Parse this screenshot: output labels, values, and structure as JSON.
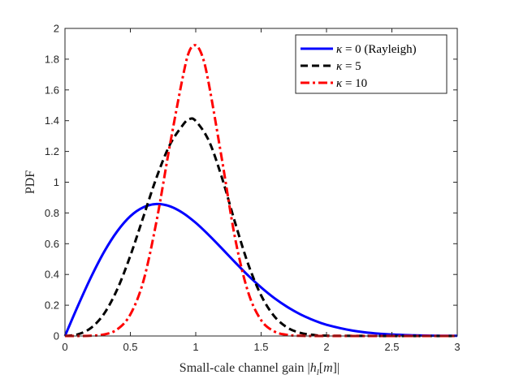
{
  "chart_data": {
    "type": "line",
    "title": "",
    "xlabel": "Small-cale channel gain |h_l[m]|",
    "xlabel_parts": {
      "prefix": "Small-cale channel gain |",
      "h": "h",
      "sub": "l",
      "bracket": "[",
      "m": "m",
      "suffix": "]|"
    },
    "ylabel": "PDF",
    "xlim": [
      0,
      3
    ],
    "ylim": [
      0,
      2
    ],
    "x_ticks": [
      0,
      0.5,
      1,
      1.5,
      2,
      2.5,
      3
    ],
    "x_tick_labels": [
      "0",
      "0.5",
      "1",
      "1.5",
      "2",
      "2.5",
      "3"
    ],
    "y_ticks": [
      0,
      0.2,
      0.4,
      0.6,
      0.8,
      1,
      1.2,
      1.4,
      1.6,
      1.8,
      2
    ],
    "y_tick_labels": [
      "0",
      "0.2",
      "0.4",
      "0.6",
      "0.8",
      "1",
      "1.2",
      "1.4",
      "1.6",
      "1.8",
      "2"
    ],
    "grid": false,
    "legend_position": "top-right",
    "series": [
      {
        "name": "κ = 0 (Rayleigh)",
        "kappa_symbol": "κ",
        "label_rest": " = 0 (Rayleigh)",
        "kappa": 0,
        "color": "#0000ff",
        "dash": "solid",
        "x": [
          0,
          0.1,
          0.2,
          0.3,
          0.4,
          0.5,
          0.6,
          0.7,
          0.8,
          0.9,
          1.0,
          1.1,
          1.2,
          1.3,
          1.4,
          1.5,
          1.6,
          1.7,
          1.8,
          1.9,
          2.0,
          2.2,
          2.4,
          2.6,
          2.8,
          3.0
        ],
        "values": [
          0,
          0.198,
          0.384,
          0.548,
          0.681,
          0.779,
          0.837,
          0.858,
          0.844,
          0.801,
          0.736,
          0.656,
          0.569,
          0.48,
          0.394,
          0.316,
          0.247,
          0.189,
          0.141,
          0.103,
          0.073,
          0.035,
          0.015,
          0.006,
          0.002,
          0.001
        ]
      },
      {
        "name": "κ = 5",
        "kappa_symbol": "κ",
        "label_rest": " = 5",
        "kappa": 5,
        "color": "#000000",
        "dash": "dashed",
        "x": [
          0,
          0.1,
          0.2,
          0.3,
          0.4,
          0.5,
          0.6,
          0.7,
          0.8,
          0.9,
          0.95,
          1.0,
          1.1,
          1.2,
          1.3,
          1.4,
          1.5,
          1.6,
          1.7,
          1.8,
          1.9,
          2.0,
          2.5,
          3.0
        ],
        "values": [
          0,
          0.011,
          0.053,
          0.146,
          0.304,
          0.522,
          0.776,
          1.03,
          1.24,
          1.37,
          1.41,
          1.398,
          1.27,
          1.03,
          0.74,
          0.47,
          0.264,
          0.129,
          0.055,
          0.02,
          0.007,
          0.002,
          0.0,
          0.0
        ]
      },
      {
        "name": "κ = 10",
        "kappa_symbol": "κ",
        "label_rest": " = 10",
        "kappa": 10,
        "color": "#ff0000",
        "dash": "dashdot",
        "x": [
          0,
          0.1,
          0.2,
          0.3,
          0.4,
          0.5,
          0.6,
          0.7,
          0.8,
          0.9,
          0.95,
          1.0,
          1.05,
          1.1,
          1.2,
          1.3,
          1.4,
          1.5,
          1.6,
          1.7,
          1.8,
          2.0,
          2.5,
          3.0
        ],
        "values": [
          0,
          0.0,
          0.002,
          0.01,
          0.043,
          0.14,
          0.358,
          0.746,
          1.23,
          1.68,
          1.85,
          1.89,
          1.82,
          1.64,
          1.15,
          0.64,
          0.287,
          0.103,
          0.03,
          0.007,
          0.001,
          0.0,
          0.0,
          0.0
        ]
      }
    ]
  }
}
